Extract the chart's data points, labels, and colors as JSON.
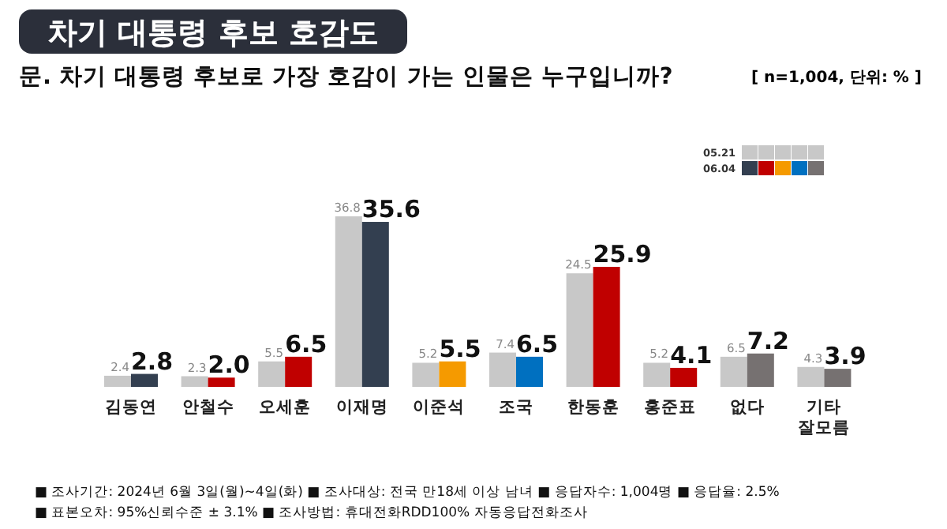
{
  "chart_data": {
    "type": "bar",
    "title": "차기 대통령 후보 호감도",
    "subtitle": "문. 차기 대통령 후보로 가장 호감이 가는 인물은 누구입니까?",
    "categories": [
      "김동연",
      "안철수",
      "오세훈",
      "이재명",
      "이준석",
      "조국",
      "한동훈",
      "홍준표",
      "없다",
      "기타 잘모름"
    ],
    "series": [
      {
        "name": "05.21",
        "color": "#c8c8c8",
        "values": [
          2.4,
          2.3,
          5.5,
          36.8,
          5.2,
          7.4,
          24.5,
          5.2,
          6.5,
          4.3
        ]
      },
      {
        "name": "06.04",
        "colors": [
          "#333f50",
          "#c00000",
          "#c00000",
          "#333f50",
          "#f59a00",
          "#0070c0",
          "#c00000",
          "#c00000",
          "#767171",
          "#767171"
        ],
        "values": [
          2.8,
          2.0,
          6.5,
          35.6,
          5.5,
          6.5,
          25.9,
          4.1,
          7.2,
          3.9
        ],
        "value_labels": [
          "2.8",
          "2.0",
          "6.5",
          "35.6",
          "5.5",
          "6.5",
          "25.9",
          "4.1",
          "7.2",
          "3.9"
        ]
      }
    ],
    "data_labels": true,
    "legend": "top right",
    "annotations": [
      "[ n=1,004, 단위: % ]",
      "■ 조사기간: 2024년 6월 3일(월)~4일(화)",
      "■ 조사대상: 전국 만18세 이상 남녀",
      "■ 응답자수: 1,004명",
      "■ 응답율: 2.5%",
      "■ 표본오차: 95%신뢰수준 ± 3.1%",
      "■ 조사방법: 휴대전화RDD100% 자동응답전화조사"
    ]
  }
}
